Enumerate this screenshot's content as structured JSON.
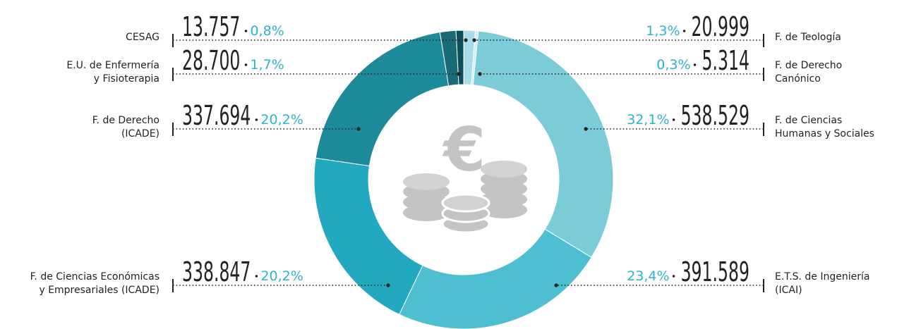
{
  "chart_data": {
    "type": "donut",
    "categories": [
      [
        "F. de Teología"
      ],
      [
        "F. de Derecho",
        "Canónico"
      ],
      [
        "F. de Ciencias",
        "Humanas y Sociales"
      ],
      [
        "E.T.S. de Ingeniería",
        "(ICAI)"
      ],
      [
        "F. de Ciencias Económicas",
        "y Empresariales (ICADE)"
      ],
      [
        "F. de Derecho",
        "(ICADE)"
      ],
      [
        "E.U. de Enfermería",
        "y Fisioterapia"
      ],
      [
        "CESAG"
      ]
    ],
    "values": [
      20999,
      5314,
      538529,
      391589,
      338847,
      337694,
      28700,
      13757
    ],
    "value_labels": [
      "20.999",
      "5.314",
      "538.529",
      "391.589",
      "338.847",
      "337.694",
      "28.700",
      "13.757"
    ],
    "percents": [
      1.3,
      0.3,
      32.1,
      23.4,
      20.2,
      20.2,
      1.7,
      0.8
    ],
    "percent_labels": [
      "1,3%",
      "0,3%",
      "32,1%",
      "23,4%",
      "20,2%",
      "20,2%",
      "1,7%",
      "0,8%"
    ],
    "colors": [
      "#a9dce6",
      "#d3edf2",
      "#7ccbd9",
      "#4dbfd0",
      "#22a9bf",
      "#1d8a9a",
      "#1a6b78",
      "#0d4f5c"
    ]
  }
}
